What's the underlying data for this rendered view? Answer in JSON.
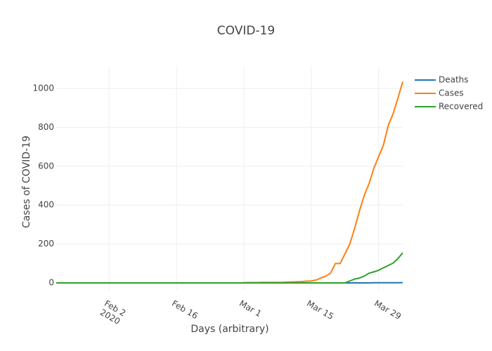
{
  "chart_data": {
    "type": "line",
    "title": "COVID-19",
    "xlabel": "Days (arbitrary)",
    "ylabel": "Cases of COVID-19",
    "x": [
      "2020-01-22",
      "2020-01-23",
      "2020-01-24",
      "2020-01-25",
      "2020-01-26",
      "2020-01-27",
      "2020-01-28",
      "2020-01-29",
      "2020-01-30",
      "2020-01-31",
      "2020-02-01",
      "2020-02-02",
      "2020-02-03",
      "2020-02-04",
      "2020-02-05",
      "2020-02-06",
      "2020-02-07",
      "2020-02-08",
      "2020-02-09",
      "2020-02-10",
      "2020-02-11",
      "2020-02-12",
      "2020-02-13",
      "2020-02-14",
      "2020-02-15",
      "2020-02-16",
      "2020-02-17",
      "2020-02-18",
      "2020-02-19",
      "2020-02-20",
      "2020-02-21",
      "2020-02-22",
      "2020-02-23",
      "2020-02-24",
      "2020-02-25",
      "2020-02-26",
      "2020-02-27",
      "2020-02-28",
      "2020-02-29",
      "2020-03-01",
      "2020-03-02",
      "2020-03-03",
      "2020-03-04",
      "2020-03-05",
      "2020-03-06",
      "2020-03-07",
      "2020-03-08",
      "2020-03-09",
      "2020-03-10",
      "2020-03-11",
      "2020-03-12",
      "2020-03-13",
      "2020-03-14",
      "2020-03-15",
      "2020-03-16",
      "2020-03-17",
      "2020-03-18",
      "2020-03-19",
      "2020-03-20",
      "2020-03-21",
      "2020-03-22",
      "2020-03-23",
      "2020-03-24",
      "2020-03-25",
      "2020-03-26",
      "2020-03-27",
      "2020-03-28",
      "2020-03-29",
      "2020-03-30",
      "2020-03-31",
      "2020-04-01",
      "2020-04-02",
      "2020-04-03"
    ],
    "series": [
      {
        "name": "Deaths",
        "color": "#1f77b4",
        "values": [
          0,
          0,
          0,
          0,
          0,
          0,
          0,
          0,
          0,
          0,
          0,
          0,
          0,
          0,
          0,
          0,
          0,
          0,
          0,
          0,
          0,
          0,
          0,
          0,
          0,
          0,
          0,
          0,
          0,
          0,
          0,
          0,
          0,
          0,
          0,
          0,
          0,
          0,
          0,
          0,
          0,
          0,
          0,
          0,
          0,
          0,
          0,
          0,
          0,
          0,
          0,
          0,
          0,
          0,
          0,
          0,
          0,
          0,
          0,
          0,
          0,
          0,
          0,
          0,
          0,
          0,
          1,
          1,
          1,
          1,
          1,
          1,
          2
        ]
      },
      {
        "name": "Cases",
        "color": "#ff7f0e",
        "values": [
          0,
          0,
          0,
          0,
          0,
          0,
          0,
          0,
          0,
          0,
          0,
          0,
          0,
          0,
          0,
          0,
          0,
          0,
          0,
          0,
          0,
          0,
          0,
          0,
          0,
          0,
          0,
          0,
          0,
          0,
          0,
          0,
          0,
          0,
          0,
          0,
          0,
          0,
          0,
          1,
          2,
          2,
          2,
          3,
          3,
          3,
          3,
          3,
          4,
          5,
          6,
          7,
          9,
          10,
          15,
          25,
          35,
          50,
          100,
          100,
          150,
          200,
          280,
          370,
          450,
          510,
          590,
          650,
          710,
          810,
          870,
          950,
          1035
        ]
      },
      {
        "name": "Recovered",
        "color": "#2ca02c",
        "values": [
          0,
          0,
          0,
          0,
          0,
          0,
          0,
          0,
          0,
          0,
          0,
          0,
          0,
          0,
          0,
          0,
          0,
          0,
          0,
          0,
          0,
          0,
          0,
          0,
          0,
          0,
          0,
          0,
          0,
          0,
          0,
          0,
          0,
          0,
          0,
          0,
          0,
          0,
          0,
          0,
          0,
          0,
          0,
          0,
          0,
          0,
          0,
          0,
          0,
          0,
          0,
          0,
          0,
          0,
          0,
          0,
          0,
          0,
          0,
          0,
          0,
          10,
          20,
          25,
          35,
          50,
          57,
          65,
          78,
          90,
          102,
          125,
          155
        ]
      }
    ],
    "xlim": [
      "2020-01-22",
      "2020-04-03"
    ],
    "xticks": [
      {
        "value": "2020-02-02",
        "label": "Feb 2\n2020"
      },
      {
        "value": "2020-02-16",
        "label": "Feb 16"
      },
      {
        "value": "2020-03-01",
        "label": "Mar 1"
      },
      {
        "value": "2020-03-15",
        "label": "Mar 15"
      },
      {
        "value": "2020-03-29",
        "label": "Mar 29"
      }
    ],
    "ylim": [
      -36,
      1112
    ],
    "yticks": [
      0,
      200,
      400,
      600,
      800,
      1000
    ],
    "grid": true,
    "legend": "right"
  }
}
